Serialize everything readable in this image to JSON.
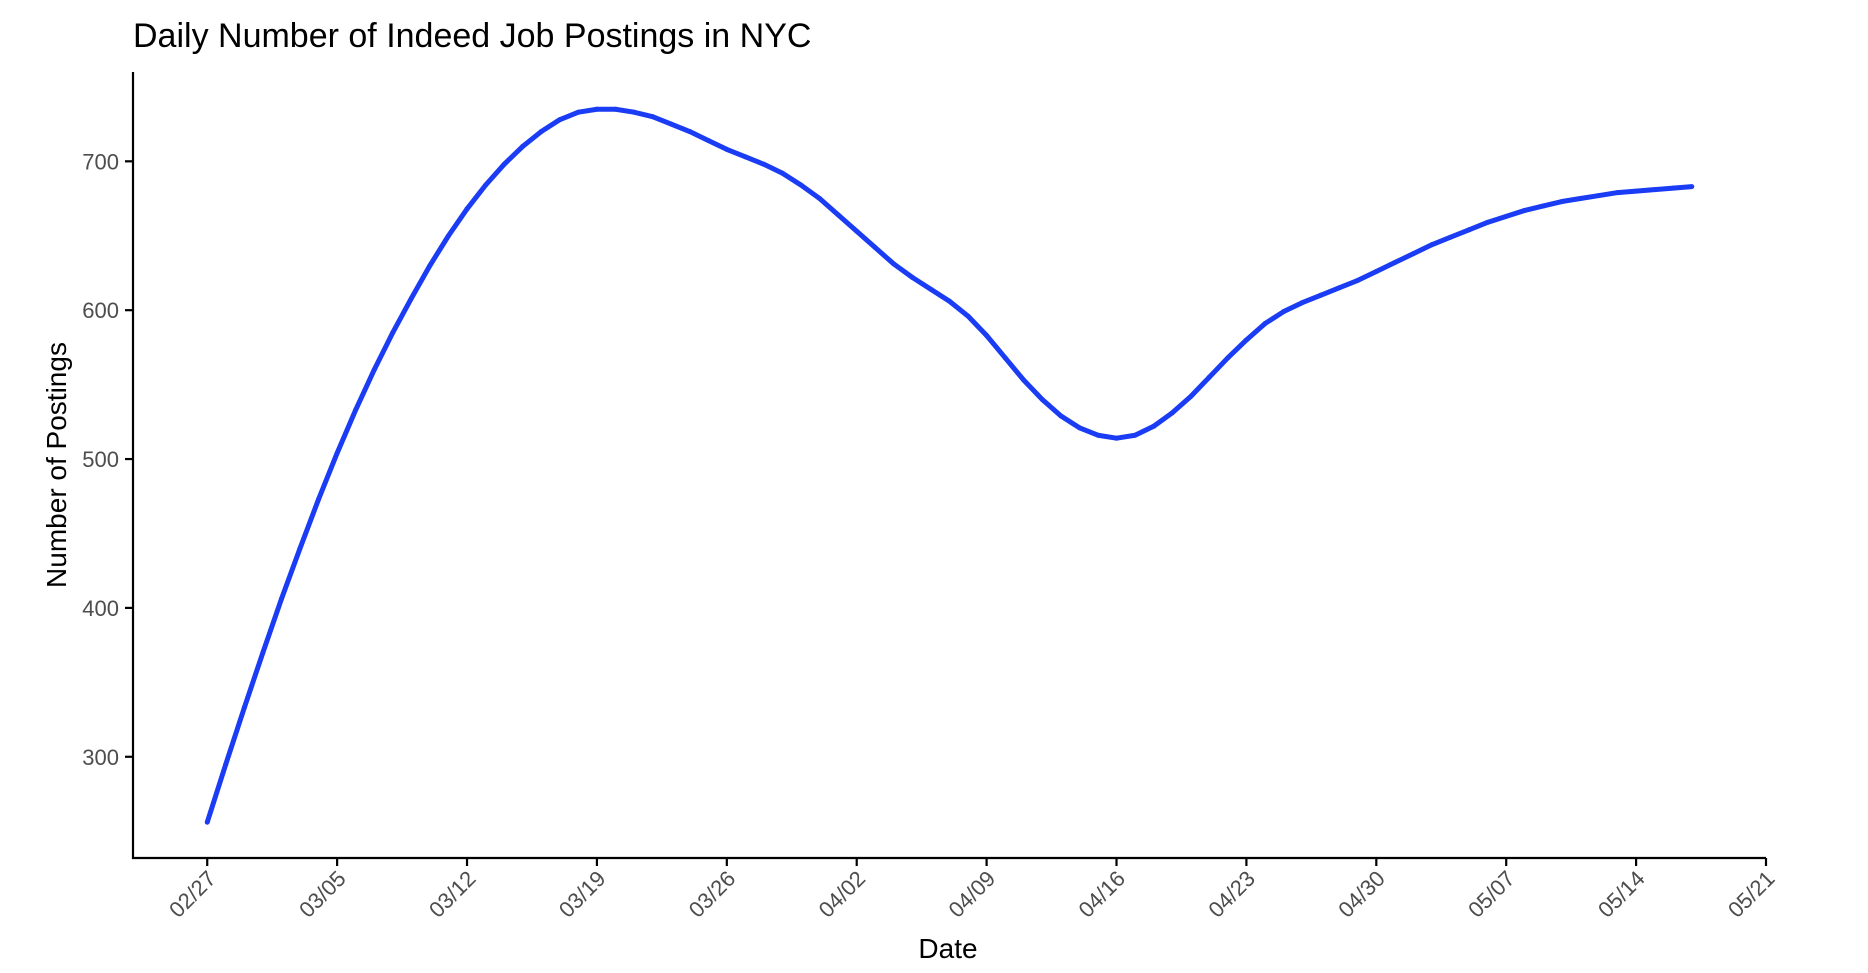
{
  "chart_data": {
    "type": "line",
    "title": "Daily Number of Indeed Job Postings in NYC",
    "xlabel": "Date",
    "ylabel": "Number of Postings",
    "x_ticks": [
      "02/27",
      "03/05",
      "03/12",
      "03/19",
      "03/26",
      "04/02",
      "04/09",
      "04/16",
      "04/23",
      "04/30",
      "05/07",
      "05/14",
      "05/21"
    ],
    "y_ticks": [
      300,
      400,
      500,
      600,
      700
    ],
    "ylim": [
      232,
      760
    ],
    "xlim": [
      "02/23",
      "05/21"
    ],
    "grid": false,
    "line_color": "#1a3cf5",
    "series": [
      {
        "values": [
          [
            "02/27",
            256
          ],
          [
            "02/28",
            295
          ],
          [
            "02/29",
            333
          ],
          [
            "03/01",
            370
          ],
          [
            "03/02",
            406
          ],
          [
            "03/03",
            440
          ],
          [
            "03/04",
            473
          ],
          [
            "03/05",
            504
          ],
          [
            "03/06",
            533
          ],
          [
            "03/07",
            560
          ],
          [
            "03/08",
            585
          ],
          [
            "03/09",
            608
          ],
          [
            "03/10",
            630
          ],
          [
            "03/11",
            650
          ],
          [
            "03/12",
            668
          ],
          [
            "03/13",
            684
          ],
          [
            "03/14",
            698
          ],
          [
            "03/15",
            710
          ],
          [
            "03/16",
            720
          ],
          [
            "03/17",
            728
          ],
          [
            "03/18",
            733
          ],
          [
            "03/19",
            735
          ],
          [
            "03/20",
            735
          ],
          [
            "03/21",
            733
          ],
          [
            "03/22",
            730
          ],
          [
            "03/23",
            725
          ],
          [
            "03/24",
            720
          ],
          [
            "03/25",
            714
          ],
          [
            "03/26",
            708
          ],
          [
            "03/27",
            703
          ],
          [
            "03/28",
            698
          ],
          [
            "03/29",
            692
          ],
          [
            "03/30",
            684
          ],
          [
            "03/31",
            675
          ],
          [
            "04/01",
            664
          ],
          [
            "04/02",
            653
          ],
          [
            "04/03",
            642
          ],
          [
            "04/04",
            631
          ],
          [
            "04/05",
            622
          ],
          [
            "04/06",
            614
          ],
          [
            "04/07",
            606
          ],
          [
            "04/08",
            596
          ],
          [
            "04/09",
            583
          ],
          [
            "04/10",
            568
          ],
          [
            "04/11",
            553
          ],
          [
            "04/12",
            540
          ],
          [
            "04/13",
            529
          ],
          [
            "04/14",
            521
          ],
          [
            "04/15",
            516
          ],
          [
            "04/16",
            514
          ],
          [
            "04/17",
            516
          ],
          [
            "04/18",
            522
          ],
          [
            "04/19",
            531
          ],
          [
            "04/20",
            542
          ],
          [
            "04/21",
            555
          ],
          [
            "04/22",
            568
          ],
          [
            "04/23",
            580
          ],
          [
            "04/24",
            591
          ],
          [
            "04/25",
            599
          ],
          [
            "04/26",
            605
          ],
          [
            "04/27",
            610
          ],
          [
            "04/28",
            615
          ],
          [
            "04/29",
            620
          ],
          [
            "04/30",
            626
          ],
          [
            "05/01",
            632
          ],
          [
            "05/02",
            638
          ],
          [
            "05/03",
            644
          ],
          [
            "05/04",
            649
          ],
          [
            "05/05",
            654
          ],
          [
            "05/06",
            659
          ],
          [
            "05/07",
            663
          ],
          [
            "05/08",
            667
          ],
          [
            "05/09",
            670
          ],
          [
            "05/10",
            673
          ],
          [
            "05/11",
            675
          ],
          [
            "05/12",
            677
          ],
          [
            "05/13",
            679
          ],
          [
            "05/14",
            680
          ],
          [
            "05/15",
            681
          ],
          [
            "05/16",
            682
          ],
          [
            "05/17",
            683
          ]
        ]
      }
    ]
  }
}
